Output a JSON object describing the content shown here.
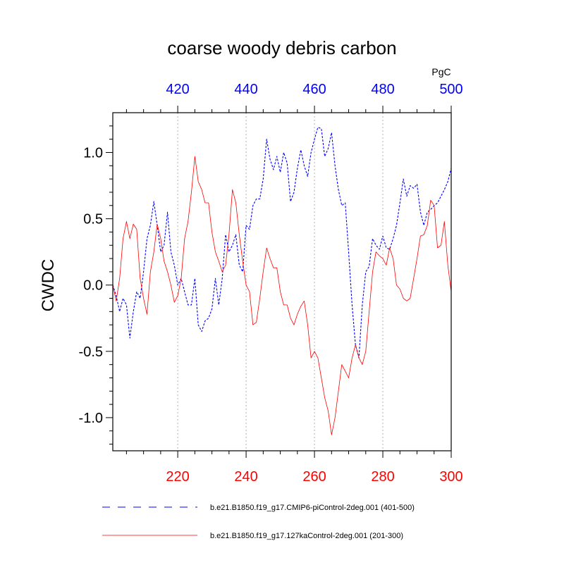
{
  "chart_data": {
    "type": "line",
    "title": "coarse woody debris carbon",
    "ylabel": "CWDC",
    "units_label": "PgC",
    "ylim": [
      -1.25,
      1.3
    ],
    "y_ticks": [
      {
        "value": 1.0,
        "label": "1.0"
      },
      {
        "value": 0.5,
        "label": "0.5"
      },
      {
        "value": 0.0,
        "label": "0.0"
      },
      {
        "value": -0.5,
        "label": "-0.5"
      },
      {
        "value": -1.0,
        "label": "-1.0"
      }
    ],
    "bottom_axis": {
      "range": [
        201,
        300
      ],
      "color": "#ff0000",
      "ticks": [
        {
          "value": 220,
          "label": "220"
        },
        {
          "value": 240,
          "label": "240"
        },
        {
          "value": 260,
          "label": "260"
        },
        {
          "value": 280,
          "label": "280"
        },
        {
          "value": 300,
          "label": "300"
        }
      ]
    },
    "top_axis": {
      "range": [
        401,
        500
      ],
      "color": "#0000ff",
      "ticks": [
        {
          "value": 420,
          "label": "420"
        },
        {
          "value": 440,
          "label": "440"
        },
        {
          "value": 460,
          "label": "460"
        },
        {
          "value": 480,
          "label": "480"
        },
        {
          "value": 500,
          "label": "500"
        }
      ]
    },
    "grid": "vertical-dotted",
    "legend_position": "bottom",
    "series": [
      {
        "name": "b.e21.B1850.f19_g17.CMIP6-piControl-2deg.001 (401-500)",
        "color": "#0000ff",
        "style": "dashed",
        "axis": "top",
        "x": [
          401,
          402,
          403,
          404,
          405,
          406,
          407,
          408,
          409,
          410,
          411,
          412,
          413,
          414,
          415,
          416,
          417,
          418,
          419,
          420,
          421,
          422,
          423,
          424,
          425,
          426,
          427,
          428,
          429,
          430,
          431,
          432,
          433,
          434,
          435,
          436,
          437,
          438,
          439,
          440,
          441,
          442,
          443,
          444,
          445,
          446,
          447,
          448,
          449,
          450,
          451,
          452,
          453,
          454,
          455,
          456,
          457,
          458,
          459,
          460,
          461,
          462,
          463,
          464,
          465,
          466,
          467,
          468,
          469,
          470,
          471,
          472,
          473,
          474,
          475,
          476,
          477,
          478,
          479,
          480,
          481,
          482,
          483,
          484,
          485,
          486,
          487,
          488,
          489,
          490,
          491,
          492,
          493,
          494,
          495,
          496,
          497,
          498,
          499,
          500
        ],
        "values": [
          0.0,
          -0.08,
          -0.2,
          -0.1,
          -0.15,
          -0.4,
          -0.2,
          -0.05,
          -0.1,
          0.1,
          0.35,
          0.45,
          0.63,
          0.45,
          0.25,
          0.3,
          0.55,
          0.25,
          0.15,
          0.0,
          0.05,
          -0.05,
          -0.15,
          -0.15,
          0.05,
          -0.3,
          -0.35,
          -0.27,
          -0.25,
          -0.18,
          0.05,
          -0.15,
          0.05,
          0.38,
          0.25,
          0.3,
          0.38,
          0.15,
          0.1,
          0.45,
          0.42,
          0.6,
          0.65,
          0.65,
          0.8,
          1.1,
          0.95,
          0.87,
          0.97,
          0.85,
          1.0,
          0.92,
          0.63,
          0.7,
          0.88,
          1.02,
          0.9,
          0.82,
          1.0,
          1.1,
          1.19,
          1.18,
          0.97,
          1.03,
          1.15,
          0.9,
          0.72,
          0.6,
          0.62,
          0.25,
          -0.15,
          -0.45,
          -0.55,
          -0.15,
          0.1,
          0.14,
          0.35,
          0.3,
          0.27,
          0.37,
          0.28,
          0.27,
          0.35,
          0.45,
          0.62,
          0.8,
          0.67,
          0.75,
          0.73,
          0.76,
          0.55,
          0.45,
          0.55,
          0.57,
          0.6,
          0.62,
          0.67,
          0.72,
          0.78,
          0.88
        ]
      },
      {
        "name": "b.e21.B1850.f19_g17.127kaControl-2deg.001 (201-300)",
        "color": "#ff0000",
        "style": "solid",
        "axis": "bottom",
        "x": [
          201,
          202,
          203,
          204,
          205,
          206,
          207,
          208,
          209,
          210,
          211,
          212,
          213,
          214,
          215,
          216,
          217,
          218,
          219,
          220,
          221,
          222,
          223,
          224,
          225,
          226,
          227,
          228,
          229,
          230,
          231,
          232,
          233,
          234,
          235,
          236,
          237,
          238,
          239,
          240,
          241,
          242,
          243,
          244,
          245,
          246,
          247,
          248,
          249,
          250,
          251,
          252,
          253,
          254,
          255,
          256,
          257,
          258,
          259,
          260,
          261,
          262,
          263,
          264,
          265,
          266,
          267,
          268,
          269,
          270,
          271,
          272,
          273,
          274,
          275,
          276,
          277,
          278,
          279,
          280,
          281,
          282,
          283,
          284,
          285,
          286,
          287,
          288,
          289,
          290,
          291,
          292,
          293,
          294,
          295,
          296,
          297,
          298,
          299,
          300
        ],
        "values": [
          0.0,
          -0.12,
          0.05,
          0.35,
          0.48,
          0.35,
          0.46,
          0.42,
          0.05,
          -0.1,
          -0.22,
          0.1,
          0.25,
          0.46,
          0.35,
          0.18,
          0.1,
          0.0,
          -0.13,
          -0.08,
          0.05,
          0.35,
          0.48,
          0.7,
          0.97,
          0.78,
          0.72,
          0.62,
          0.62,
          0.4,
          0.25,
          0.18,
          0.1,
          0.15,
          0.38,
          0.72,
          0.62,
          0.38,
          0.18,
          0.0,
          -0.05,
          -0.3,
          -0.28,
          -0.1,
          0.1,
          0.28,
          0.2,
          0.13,
          0.13,
          -0.05,
          -0.15,
          -0.15,
          -0.25,
          -0.3,
          -0.22,
          -0.16,
          -0.12,
          -0.3,
          -0.55,
          -0.5,
          -0.55,
          -0.7,
          -0.85,
          -0.95,
          -1.13,
          -1.0,
          -0.8,
          -0.6,
          -0.65,
          -0.7,
          -0.55,
          -0.45,
          -0.55,
          -0.6,
          -0.5,
          -0.2,
          0.1,
          0.25,
          0.22,
          0.2,
          0.15,
          0.28,
          0.2,
          0.0,
          -0.03,
          -0.1,
          -0.12,
          -0.1,
          0.05,
          0.2,
          0.37,
          0.38,
          0.45,
          0.64,
          0.6,
          0.28,
          0.3,
          0.48,
          0.15,
          -0.05
        ]
      }
    ]
  }
}
